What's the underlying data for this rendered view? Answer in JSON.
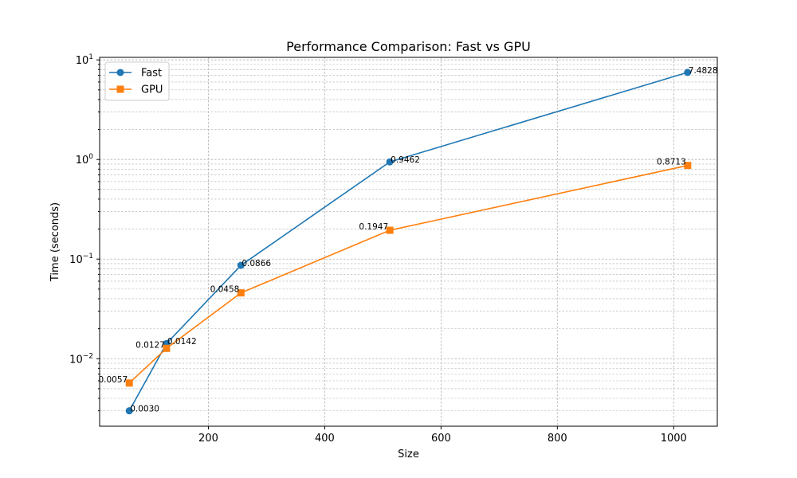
{
  "chart_data": {
    "type": "line",
    "title": "Performance Comparison: Fast vs GPU",
    "xlabel": "Size",
    "ylabel": "Time (seconds)",
    "xlim": [
      13,
      1075
    ],
    "ylim": [
      0.0021,
      10.6
    ],
    "yscale": "log",
    "grid": true,
    "legend_position": "top-left",
    "x": [
      64,
      128,
      256,
      512,
      1024
    ],
    "x_ticks": [
      200,
      400,
      600,
      800,
      1000
    ],
    "y_ticks": [
      {
        "value": 0.01,
        "base": "10",
        "exp": "−2"
      },
      {
        "value": 0.1,
        "base": "10",
        "exp": "−1"
      },
      {
        "value": 1,
        "base": "10",
        "exp": "0"
      },
      {
        "value": 10,
        "base": "10",
        "exp": "1"
      }
    ],
    "series": [
      {
        "name": "Fast",
        "color": "#1f77b4",
        "marker": "circle",
        "values": [
          0.003,
          0.0142,
          0.0866,
          0.9462,
          7.4828
        ],
        "labels": [
          "0.0030",
          "0.0142",
          "0.0866",
          "0.9462",
          "7.4828"
        ]
      },
      {
        "name": "GPU",
        "color": "#ff7f0e",
        "marker": "square",
        "values": [
          0.0057,
          0.0127,
          0.0458,
          0.1947,
          0.8713
        ],
        "labels": [
          "0.0057",
          "0.0127",
          "0.0458",
          "0.1947",
          "0.8713"
        ]
      }
    ]
  }
}
